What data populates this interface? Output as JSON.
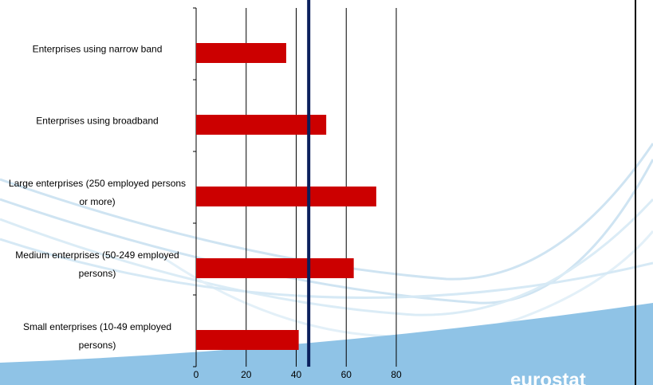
{
  "chart_data": {
    "type": "bar",
    "orientation": "horizontal",
    "categories": [
      "Enterprises using narrow band",
      "Enterprises using broadband",
      "Large enterprises (250 employed persons or more)",
      "Medium enterprises (50-249 employed persons)",
      "Small enterprises (10-49 employed persons)"
    ],
    "values": [
      36,
      52,
      72,
      63,
      41
    ],
    "color": "#cc0000",
    "xlim": [
      0,
      80
    ],
    "xticks": [
      0,
      20,
      40,
      60,
      80
    ],
    "grid": true,
    "reference_value": 45,
    "reference_color": "#0a1f5c",
    "logo": "eurostat"
  }
}
